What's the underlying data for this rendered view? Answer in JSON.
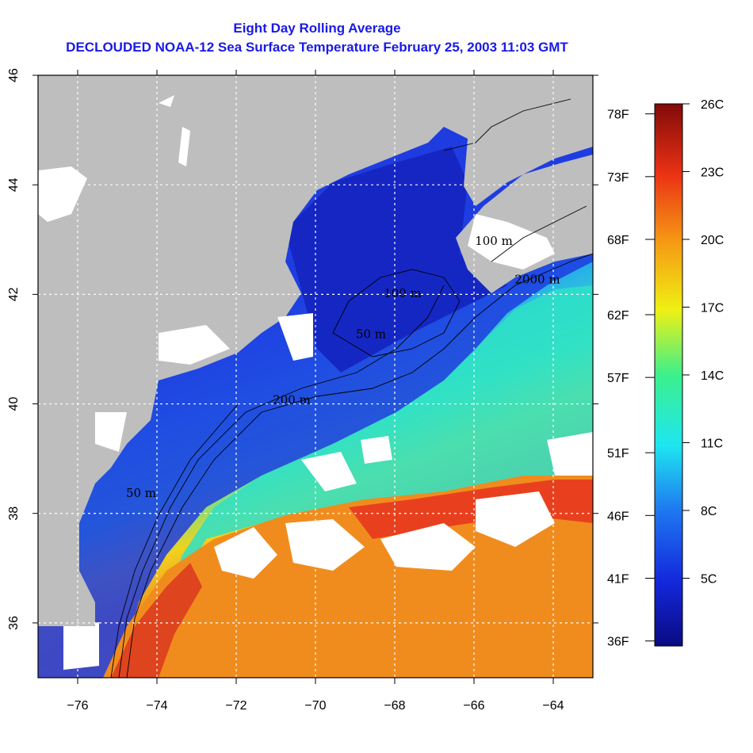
{
  "title": {
    "line1": "Eight Day Rolling Average",
    "line2": "DECLOUDED NOAA-12 Sea Surface Temperature February 25, 2003 11:03 GMT"
  },
  "colors": {
    "title": "#1a1ae6",
    "land": "#bebebe",
    "cloud": "#ffffff",
    "cold": "#1428c8",
    "warm": "#f08c1e"
  },
  "map": {
    "lon_range": [
      -77,
      -63
    ],
    "lat_range": [
      35,
      46
    ],
    "lon_ticks": [
      -76,
      -74,
      -72,
      -70,
      -68,
      -66,
      -64
    ],
    "lon_tick_labels": [
      "−76",
      "−74",
      "−72",
      "−70",
      "−68",
      "−66",
      "−64"
    ],
    "lat_ticks": [
      36,
      38,
      40,
      42,
      44,
      46
    ],
    "lat_tick_labels": [
      "36",
      "38",
      "40",
      "42",
      "44",
      "46"
    ],
    "grid": "dotted",
    "contour_labels": [
      {
        "text": "50 m",
        "lon": -74.4,
        "lat": 38.3
      },
      {
        "text": "200 m",
        "lon": -70.6,
        "lat": 40.0
      },
      {
        "text": "50 m",
        "lon": -68.6,
        "lat": 41.2
      },
      {
        "text": "100 m",
        "lon": -67.8,
        "lat": 41.95
      },
      {
        "text": "100 m",
        "lon": -65.5,
        "lat": 42.9
      },
      {
        "text": "2000 m",
        "lon": -64.4,
        "lat": 42.2
      }
    ]
  },
  "colorbar": {
    "celsius_labels": [
      "26C",
      "23C",
      "20C",
      "17C",
      "14C",
      "11C",
      "8C",
      "5C"
    ],
    "fahrenheit_labels": [
      "78F",
      "73F",
      "68F",
      "62F",
      "57F",
      "51F",
      "46F",
      "41F",
      "36F"
    ],
    "celsius_values": [
      26,
      23,
      20,
      17,
      14,
      11,
      8,
      5
    ],
    "fahrenheit_values": [
      78,
      73,
      68,
      62,
      57,
      51,
      46,
      41,
      36
    ],
    "range_c": [
      2,
      26
    ]
  }
}
